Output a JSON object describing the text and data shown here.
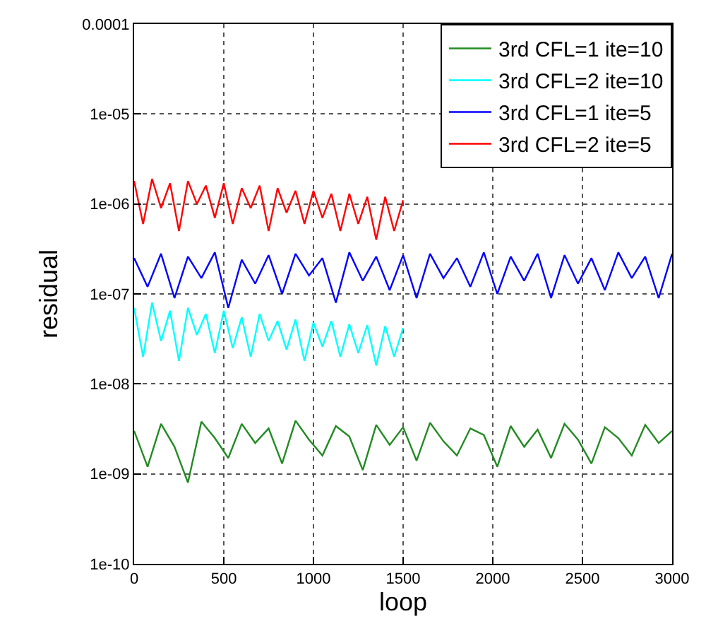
{
  "chart_data": {
    "type": "line",
    "xlabel": "loop",
    "ylabel": "residual",
    "log": "y",
    "grid": true,
    "legend": "top right",
    "line_style": "solid",
    "marker": "none",
    "xlim": [
      0,
      3000
    ],
    "xticks": [
      0,
      500,
      1000,
      1500,
      2000,
      2500,
      3000
    ],
    "ylim": [
      1e-10,
      0.0001
    ],
    "yticks": [
      {
        "value": 1e-10,
        "label": "1e-10"
      },
      {
        "value": 1e-09,
        "label": "1e-09"
      },
      {
        "value": 1e-08,
        "label": "1e-08"
      },
      {
        "value": 1e-07,
        "label": "1e-07"
      },
      {
        "value": 1e-06,
        "label": "1e-06"
      },
      {
        "value": 1e-05,
        "label": "1e-05"
      },
      {
        "value": 0.0001,
        "label": "0.0001"
      }
    ],
    "series": [
      {
        "name": "3rd CFL=1 ite=10",
        "color": "#228b22",
        "x": [
          0,
          75,
          150,
          225,
          300,
          375,
          450,
          525,
          600,
          675,
          750,
          825,
          900,
          975,
          1050,
          1125,
          1200,
          1275,
          1350,
          1425,
          1500,
          1575,
          1650,
          1725,
          1800,
          1875,
          1950,
          2025,
          2100,
          2175,
          2250,
          2325,
          2400,
          2475,
          2550,
          2625,
          2700,
          2775,
          2850,
          2925,
          3000
        ],
        "values": [
          3e-09,
          1.2e-09,
          3.6e-09,
          2e-09,
          8e-10,
          3.8e-09,
          2.5e-09,
          1.5e-09,
          3.6e-09,
          2.2e-09,
          3.2e-09,
          1.3e-09,
          3.9e-09,
          2.4e-09,
          1.6e-09,
          3.4e-09,
          2.6e-09,
          1.1e-09,
          3.5e-09,
          2.1e-09,
          3.3e-09,
          1.4e-09,
          3.7e-09,
          2.3e-09,
          1.6e-09,
          3.2e-09,
          2.7e-09,
          1.2e-09,
          3.4e-09,
          2e-09,
          3.1e-09,
          1.5e-09,
          3.6e-09,
          2.4e-09,
          1.3e-09,
          3.3e-09,
          2.5e-09,
          1.6e-09,
          3.5e-09,
          2.2e-09,
          3e-09
        ]
      },
      {
        "name": "3rd CFL=2 ite=10",
        "color": "#00ffff",
        "x": [
          0,
          50,
          100,
          150,
          200,
          250,
          300,
          350,
          400,
          450,
          500,
          550,
          600,
          650,
          700,
          750,
          800,
          850,
          900,
          950,
          1000,
          1050,
          1100,
          1150,
          1200,
          1250,
          1300,
          1350,
          1400,
          1450,
          1500
        ],
        "values": [
          7e-08,
          2e-08,
          8e-08,
          3e-08,
          6.5e-08,
          1.8e-08,
          7e-08,
          3.5e-08,
          6e-08,
          2.2e-08,
          6.5e-08,
          2.5e-08,
          5.5e-08,
          2e-08,
          6e-08,
          3e-08,
          5e-08,
          2.4e-08,
          5.2e-08,
          1.8e-08,
          4.8e-08,
          2.6e-08,
          5e-08,
          2e-08,
          4.6e-08,
          2.2e-08,
          4.5e-08,
          1.6e-08,
          4.4e-08,
          2e-08,
          4.2e-08
        ]
      },
      {
        "name": "3rd CFL=1 ite=5",
        "color": "#0000ff",
        "x": [
          0,
          75,
          150,
          225,
          300,
          375,
          450,
          525,
          600,
          675,
          750,
          825,
          900,
          975,
          1050,
          1125,
          1200,
          1275,
          1350,
          1425,
          1500,
          1575,
          1650,
          1725,
          1800,
          1875,
          1950,
          2025,
          2100,
          2175,
          2250,
          2325,
          2400,
          2475,
          2550,
          2625,
          2700,
          2775,
          2850,
          2925,
          3000
        ],
        "values": [
          2.5e-07,
          1.2e-07,
          2.8e-07,
          9e-08,
          2.6e-07,
          1.5e-07,
          2.9e-07,
          7e-08,
          2.4e-07,
          1.3e-07,
          2.7e-07,
          1e-07,
          2.8e-07,
          1.6e-07,
          2.5e-07,
          8e-08,
          2.9e-07,
          1.4e-07,
          2.6e-07,
          1.1e-07,
          2.7e-07,
          9e-08,
          2.8e-07,
          1.5e-07,
          2.5e-07,
          1.2e-07,
          2.9e-07,
          1e-07,
          2.6e-07,
          1.4e-07,
          2.8e-07,
          9e-08,
          2.7e-07,
          1.3e-07,
          2.5e-07,
          1.1e-07,
          2.9e-07,
          1.5e-07,
          2.6e-07,
          9e-08,
          2.8e-07
        ]
      },
      {
        "name": "3rd CFL=2 ite=5",
        "color": "#ff0000",
        "x": [
          0,
          50,
          100,
          150,
          200,
          250,
          300,
          350,
          400,
          450,
          500,
          550,
          600,
          650,
          700,
          750,
          800,
          850,
          900,
          950,
          1000,
          1050,
          1100,
          1150,
          1200,
          1250,
          1300,
          1350,
          1400,
          1450,
          1500
        ],
        "values": [
          1.8e-06,
          6e-07,
          1.9e-06,
          9e-07,
          1.7e-06,
          5e-07,
          1.8e-06,
          1e-06,
          1.6e-06,
          7e-07,
          1.7e-06,
          6e-07,
          1.5e-06,
          9e-07,
          1.6e-06,
          5e-07,
          1.5e-06,
          8e-07,
          1.4e-06,
          6e-07,
          1.4e-06,
          7e-07,
          1.3e-06,
          5e-07,
          1.3e-06,
          6e-07,
          1.2e-06,
          4e-07,
          1.2e-06,
          5e-07,
          1.1e-06
        ]
      }
    ]
  }
}
